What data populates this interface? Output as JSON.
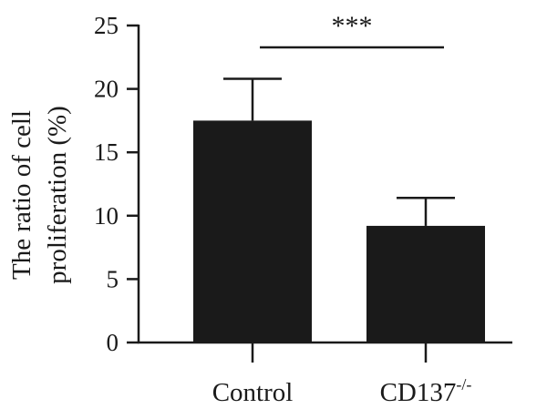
{
  "chart_data": {
    "type": "bar",
    "categories": [
      "Control",
      "CD137"
    ],
    "category_superscripts": [
      "",
      "-/-"
    ],
    "values": [
      17.5,
      9.2
    ],
    "error_upper": [
      20.8,
      11.4
    ],
    "ylabel_lines": [
      "The ratio of cell",
      "proliferation (%)"
    ],
    "ylim": [
      0,
      25
    ],
    "yticks": [
      0,
      5,
      10,
      15,
      20,
      25
    ],
    "grid": false,
    "legend": "none",
    "bar_color": "#1a1a1a",
    "significance": {
      "label": "***",
      "between": [
        "Control",
        "CD137"
      ]
    }
  }
}
